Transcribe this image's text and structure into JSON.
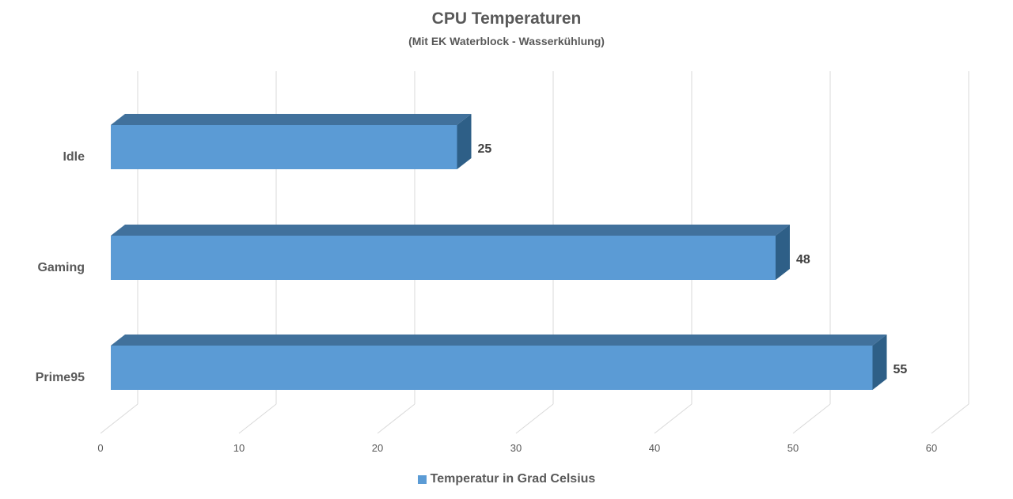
{
  "colors": {
    "bar_front": "#5b9bd5",
    "bar_top": "#41719c",
    "bar_side": "#2e5f87",
    "grid": "#d9d9d9",
    "text": "#595959",
    "label": "#404040"
  },
  "chart_data": {
    "type": "bar",
    "orientation": "horizontal",
    "style": "3d-clustered-bar",
    "title": "CPU Temperaturen",
    "subtitle": "(Mit EK Waterblock - Wasserkühlung)",
    "categories": [
      "Idle",
      "Gaming",
      "Prime95"
    ],
    "series": [
      {
        "name": "Temperatur in Grad Celsius",
        "values": [
          25,
          48,
          55
        ]
      }
    ],
    "data_labels": [
      "25",
      "48",
      "55"
    ],
    "xlim": [
      0,
      60
    ],
    "x_ticks": [
      0,
      10,
      20,
      30,
      40,
      50,
      60
    ],
    "x_tick_labels": [
      "0",
      "10",
      "20",
      "30",
      "40",
      "50",
      "60"
    ],
    "grid": true,
    "legend_position": "bottom"
  }
}
